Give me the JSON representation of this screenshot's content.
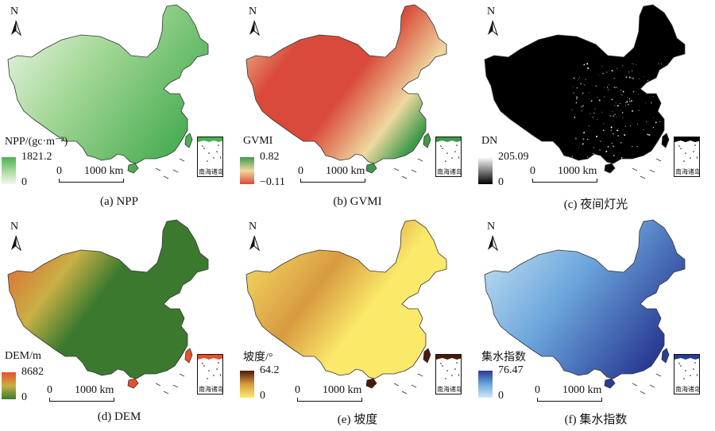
{
  "north_label": "N",
  "inset_label": "南海诸岛",
  "scale": {
    "zero": "0",
    "max": "1000 km"
  },
  "panels": [
    {
      "caption": "(a) NPP",
      "legend_title": "NPP/(gc·m⁻²)",
      "legend_max": "1821.2",
      "legend_min": "0",
      "colors": {
        "low": "#f1f8ee",
        "mid": "#a7d99a",
        "high": "#4daf55",
        "border": "#333333"
      }
    },
    {
      "caption": "(b) GVMI",
      "legend_title": "GVMI",
      "legend_max": "0.82",
      "legend_min": "−0.11",
      "colors": {
        "low": "#d94a3a",
        "mid": "#efd9a0",
        "high": "#3e9a4b",
        "border": "#333333"
      }
    },
    {
      "caption": "(c) 夜间灯光",
      "legend_title": "DN",
      "legend_max": "205.09",
      "legend_min": "0",
      "colors": {
        "low": "#000000",
        "mid": "#6b6b6b",
        "high": "#ffffff",
        "border": "#333333"
      }
    },
    {
      "caption": "(d) DEM",
      "legend_title": "DEM/m",
      "legend_max": "8682",
      "legend_min": "0",
      "colors": {
        "low": "#3b7a2e",
        "mid": "#c9b046",
        "high": "#e8502a",
        "border": "#333333"
      }
    },
    {
      "caption": "(e) 坡度",
      "legend_title": "坡度/°",
      "legend_max": "64.2",
      "legend_min": "0",
      "colors": {
        "low": "#fbe96a",
        "mid": "#d89a40",
        "high": "#4a1a08",
        "border": "#333333"
      }
    },
    {
      "caption": "(f) 集水指数",
      "legend_title": "集水指数",
      "legend_max": "76.47",
      "legend_min": "0",
      "colors": {
        "low": "#cfe8f6",
        "mid": "#6ca6dc",
        "high": "#2a3b94",
        "border": "#333333"
      }
    }
  ]
}
